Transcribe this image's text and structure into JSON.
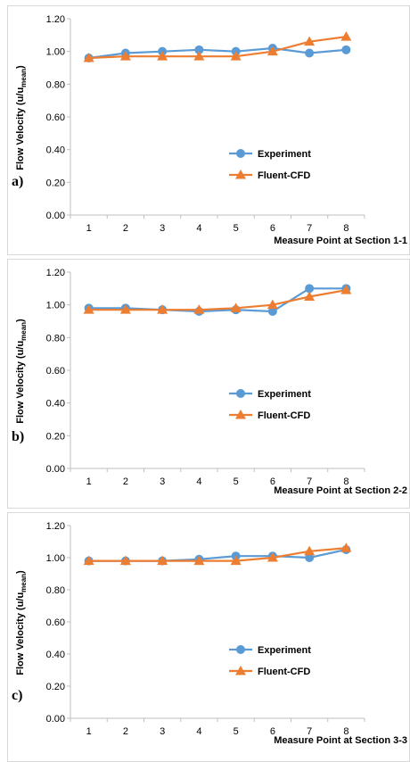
{
  "legend_labels": [
    "Experiment",
    "Fluent-CFD"
  ],
  "colors": {
    "experiment": "#5B9BD5",
    "cfd": "#ED7D31",
    "axis": "#bfbfbf"
  },
  "chart_data": [
    {
      "type": "line",
      "panel_label": "a)",
      "xlabel": "Measure Point at Section 1-1",
      "ylabel_main": "Flow Velocity (u/u",
      "ylabel_sub": "mean",
      "ylabel_end": ")",
      "x": [
        1,
        2,
        3,
        4,
        5,
        6,
        7,
        8
      ],
      "ylim": [
        0,
        1.2
      ],
      "yticks": [
        "0.00",
        "0.20",
        "0.40",
        "0.60",
        "0.80",
        "1.00",
        "1.20"
      ],
      "legend_position": "center-right",
      "series": [
        {
          "name": "Experiment",
          "marker": "circle",
          "values": [
            0.96,
            0.99,
            1.0,
            1.01,
            1.0,
            1.02,
            0.99,
            1.01
          ]
        },
        {
          "name": "Fluent-CFD",
          "marker": "triangle",
          "values": [
            0.96,
            0.97,
            0.97,
            0.97,
            0.97,
            1.0,
            1.06,
            1.09
          ]
        }
      ]
    },
    {
      "type": "line",
      "panel_label": "b)",
      "xlabel": "Measure Point at Section 2-2",
      "ylabel_main": "Flow Velocity (u/u",
      "ylabel_sub": "mean",
      "ylabel_end": ")",
      "x": [
        1,
        2,
        3,
        4,
        5,
        6,
        7,
        8
      ],
      "ylim": [
        0,
        1.2
      ],
      "yticks": [
        "0.00",
        "0.20",
        "0.40",
        "0.60",
        "0.80",
        "1.00",
        "1.20"
      ],
      "legend_position": "center-right",
      "series": [
        {
          "name": "Experiment",
          "marker": "circle",
          "values": [
            0.98,
            0.98,
            0.97,
            0.96,
            0.97,
            0.96,
            1.1,
            1.1
          ]
        },
        {
          "name": "Fluent-CFD",
          "marker": "triangle",
          "values": [
            0.97,
            0.97,
            0.97,
            0.97,
            0.98,
            1.0,
            1.05,
            1.09
          ]
        }
      ]
    },
    {
      "type": "line",
      "panel_label": "c)",
      "xlabel": "Measure Point at Section 3-3",
      "ylabel_main": "Flow Velocity (u/u",
      "ylabel_sub": "mean",
      "ylabel_end": ")",
      "x": [
        1,
        2,
        3,
        4,
        5,
        6,
        7,
        8
      ],
      "ylim": [
        0,
        1.2
      ],
      "yticks": [
        "0.00",
        "0.20",
        "0.40",
        "0.60",
        "0.80",
        "1.00",
        "1.20"
      ],
      "legend_position": "center-right",
      "series": [
        {
          "name": "Experiment",
          "marker": "circle",
          "values": [
            0.98,
            0.98,
            0.98,
            0.99,
            1.01,
            1.01,
            1.0,
            1.05
          ]
        },
        {
          "name": "Fluent-CFD",
          "marker": "triangle",
          "values": [
            0.98,
            0.98,
            0.98,
            0.98,
            0.98,
            1.0,
            1.04,
            1.06
          ]
        }
      ]
    }
  ]
}
